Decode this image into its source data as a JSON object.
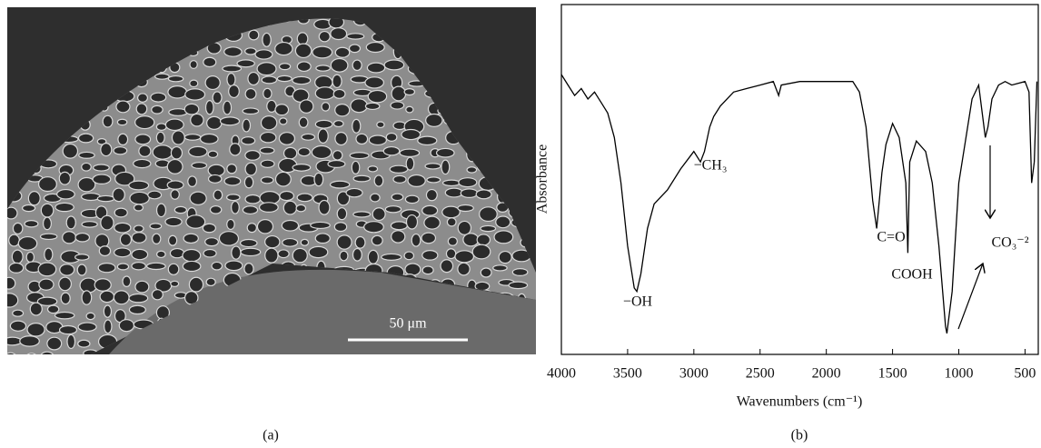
{
  "image": {
    "scale_bar": "50 μm"
  },
  "captions": [
    "(a)",
    "(b)"
  ],
  "chart_data": {
    "type": "line",
    "xlabel": "Wavenumbers (cm⁻¹)",
    "ylabel": "Absorbance",
    "annotations": [
      "−OH",
      "−CH₃",
      "C=O",
      "COOH",
      "CO₃⁻²"
    ],
    "x": [
      4000,
      3950,
      3900,
      3850,
      3800,
      3750,
      3700,
      3650,
      3600,
      3550,
      3500,
      3450,
      3430,
      3400,
      3350,
      3300,
      3200,
      3100,
      3000,
      2950,
      2920,
      2880,
      2850,
      2800,
      2700,
      2600,
      2500,
      2400,
      2360,
      2340,
      2200,
      2000,
      1800,
      1750,
      1700,
      1650,
      1620,
      1580,
      1550,
      1500,
      1450,
      1400,
      1385,
      1370,
      1320,
      1250,
      1200,
      1150,
      1100,
      1090,
      1050,
      1000,
      950,
      900,
      850,
      800,
      780,
      750,
      700,
      650,
      600,
      500,
      470,
      450,
      430,
      410
    ],
    "values": [
      80,
      77,
      74,
      76,
      73,
      75,
      72,
      69,
      62,
      49,
      31,
      19,
      18,
      23,
      36,
      43,
      47,
      53,
      58,
      55,
      58,
      65,
      68,
      71,
      75,
      76,
      77,
      78,
      74,
      77,
      78,
      78,
      78,
      75,
      65,
      44,
      36,
      52,
      60,
      66,
      62,
      49,
      29,
      55,
      61,
      58,
      49,
      31,
      8,
      6,
      18,
      49,
      61,
      73,
      77,
      62,
      65,
      73,
      77,
      78,
      77,
      78,
      75,
      49,
      55,
      78
    ],
    "color": "#000000",
    "xlim": [
      4000,
      400
    ],
    "xticks": [
      4000,
      3500,
      3000,
      2500,
      2000,
      1500,
      1000,
      500
    ],
    "ylim": [
      0,
      100
    ]
  }
}
